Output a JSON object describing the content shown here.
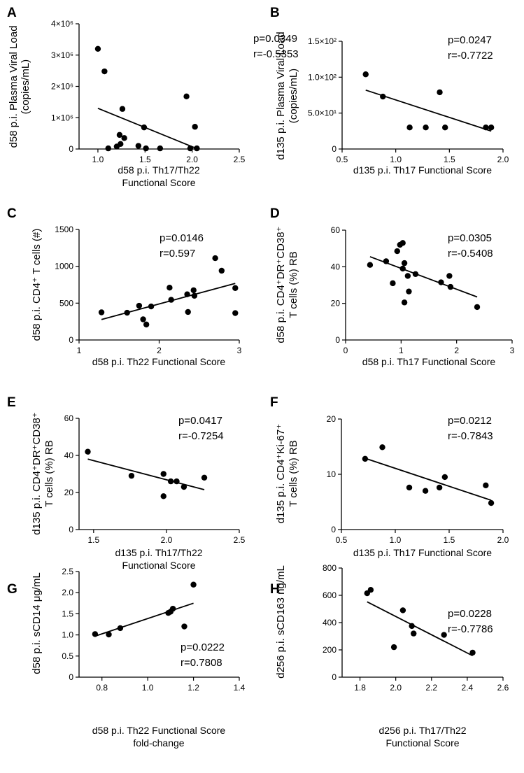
{
  "chart_data": [
    {
      "panel": "A",
      "type": "scatter",
      "xlabel": [
        "d58 p.i. Th17/Th22",
        "Functional Score"
      ],
      "ylabel": [
        "d58 p.i. Plasma Viral Load",
        "(copies/mL)"
      ],
      "xlim": [
        0.8,
        2.5
      ],
      "ylim": [
        0,
        4000000
      ],
      "xticks": [
        1.0,
        1.5,
        2.0,
        2.5
      ],
      "xtick_labels": [
        "1.0",
        "1.5",
        "2.0",
        "2.5"
      ],
      "yticks": [
        0,
        1000000,
        2000000,
        3000000,
        4000000
      ],
      "ytick_labels": [
        "0",
        "1×10⁶",
        "2×10⁶",
        "3×10⁶",
        "4×10⁶"
      ],
      "points": [
        [
          1.0,
          3200000
        ],
        [
          1.07,
          2480000
        ],
        [
          1.11,
          20000
        ],
        [
          1.2,
          80000
        ],
        [
          1.23,
          450000
        ],
        [
          1.24,
          160000
        ],
        [
          1.26,
          1280000
        ],
        [
          1.28,
          350000
        ],
        [
          1.43,
          100000
        ],
        [
          1.49,
          690000
        ],
        [
          1.51,
          20000
        ],
        [
          1.66,
          20000
        ],
        [
          1.94,
          1680000
        ],
        [
          1.98,
          20000
        ],
        [
          2.03,
          710000
        ],
        [
          2.05,
          20000
        ]
      ],
      "fit": [
        [
          1.0,
          1300000
        ],
        [
          2.06,
          0
        ]
      ],
      "stats": [
        "p=0.0349",
        "r=-0.5353"
      ]
    },
    {
      "panel": "B",
      "type": "scatter",
      "xlabel": [
        "d135 p.i. Th17 Functional Score"
      ],
      "ylabel": [
        "d135 p.i. Plasma Viral Load",
        "(copies/mL)"
      ],
      "xlim": [
        0.5,
        2.0
      ],
      "ylim": [
        0,
        150
      ],
      "xticks": [
        0.5,
        1.0,
        1.5,
        2.0
      ],
      "xtick_labels": [
        "0.5",
        "1.0",
        "1.5",
        "2.0"
      ],
      "yticks": [
        0,
        50,
        100,
        150
      ],
      "ytick_labels": [
        "0",
        "5.0×10¹",
        "1.0×10²",
        "1.5×10²"
      ],
      "points": [
        [
          0.72,
          104
        ],
        [
          0.88,
          73
        ],
        [
          1.13,
          30
        ],
        [
          1.28,
          30
        ],
        [
          1.41,
          79
        ],
        [
          1.46,
          30
        ],
        [
          1.84,
          30
        ],
        [
          1.89,
          30
        ]
      ],
      "fit": [
        [
          0.72,
          82
        ],
        [
          1.89,
          25
        ]
      ],
      "stats": [
        "p=0.0247",
        "r=-0.7722"
      ]
    },
    {
      "panel": "C",
      "type": "scatter",
      "xlabel": [
        "d58 p.i. Th22 Functional Score"
      ],
      "ylabel": [
        "d58 p.i. CD4⁺ T cells (#)"
      ],
      "xlim": [
        1,
        3
      ],
      "ylim": [
        0,
        1500
      ],
      "xticks": [
        1,
        2,
        3
      ],
      "xtick_labels": [
        "1",
        "2",
        "3"
      ],
      "yticks": [
        0,
        500,
        1000,
        1500
      ],
      "ytick_labels": [
        "0",
        "500",
        "1000",
        "1500"
      ],
      "points": [
        [
          1.28,
          375
        ],
        [
          1.6,
          370
        ],
        [
          1.75,
          465
        ],
        [
          1.8,
          280
        ],
        [
          1.84,
          210
        ],
        [
          1.9,
          455
        ],
        [
          2.13,
          710
        ],
        [
          2.15,
          545
        ],
        [
          2.35,
          620
        ],
        [
          2.36,
          380
        ],
        [
          2.43,
          675
        ],
        [
          2.44,
          600
        ],
        [
          2.7,
          1110
        ],
        [
          2.78,
          940
        ],
        [
          2.95,
          705
        ],
        [
          2.95,
          365
        ]
      ],
      "fit": [
        [
          1.28,
          278
        ],
        [
          2.95,
          768
        ]
      ],
      "stats": [
        "p=0.0146",
        "r=0.597"
      ]
    },
    {
      "panel": "D",
      "type": "scatter",
      "xlabel": [
        "d58 p.i. Th17 Functional Score"
      ],
      "ylabel": [
        "d58 p.i. CD4⁺DR⁺CD38⁺",
        "T cells (%) RB"
      ],
      "xlim": [
        0,
        3
      ],
      "ylim": [
        0,
        60
      ],
      "xticks": [
        0,
        1,
        2,
        3
      ],
      "xtick_labels": [
        "0",
        "1",
        "2",
        "3"
      ],
      "yticks": [
        0,
        20,
        40,
        60
      ],
      "ytick_labels": [
        "0",
        "20",
        "40",
        "60"
      ],
      "points": [
        [
          0.44,
          41
        ],
        [
          0.73,
          43
        ],
        [
          0.85,
          31
        ],
        [
          0.93,
          48.5
        ],
        [
          0.98,
          52
        ],
        [
          1.03,
          53
        ],
        [
          1.03,
          39
        ],
        [
          1.06,
          42
        ],
        [
          1.06,
          20.5
        ],
        [
          1.12,
          35
        ],
        [
          1.14,
          26.5
        ],
        [
          1.26,
          36
        ],
        [
          1.72,
          31.5
        ],
        [
          1.87,
          35
        ],
        [
          1.89,
          29
        ],
        [
          2.37,
          18
        ]
      ],
      "fit": [
        [
          0.44,
          45.5
        ],
        [
          2.37,
          23.5
        ]
      ],
      "stats": [
        "p=0.0305",
        "r=-0.5408"
      ]
    },
    {
      "panel": "E",
      "type": "scatter",
      "xlabel": [
        "d135 p.i. Th17/Th22",
        "Functional Score"
      ],
      "ylabel": [
        "d135 p.i. CD4⁺DR⁺CD38⁺",
        "T cells (%) RB"
      ],
      "xlim": [
        1.4,
        2.5
      ],
      "ylim": [
        0,
        60
      ],
      "xticks": [
        1.5,
        2.0,
        2.5
      ],
      "xtick_labels": [
        "1.5",
        "2.0",
        "2.5"
      ],
      "yticks": [
        0,
        20,
        40,
        60
      ],
      "ytick_labels": [
        "0",
        "20",
        "40",
        "60"
      ],
      "points": [
        [
          1.46,
          42
        ],
        [
          1.76,
          29
        ],
        [
          1.98,
          30
        ],
        [
          1.98,
          18
        ],
        [
          2.03,
          26
        ],
        [
          2.07,
          26
        ],
        [
          2.12,
          23
        ],
        [
          2.26,
          28
        ]
      ],
      "fit": [
        [
          1.46,
          38
        ],
        [
          2.26,
          21.5
        ]
      ],
      "stats": [
        "p=0.0417",
        "r=-0.7254"
      ]
    },
    {
      "panel": "F",
      "type": "scatter",
      "xlabel": [
        "d135 p.i. Th17 Functional Score"
      ],
      "ylabel": [
        "d135 p.i. CD4⁺Ki-67⁺",
        "T cells (%) RB"
      ],
      "xlim": [
        0.5,
        2.0
      ],
      "ylim": [
        0,
        20
      ],
      "xticks": [
        0.5,
        1.0,
        1.5,
        2.0
      ],
      "xtick_labels": [
        "0.5",
        "1.0",
        "1.5",
        "2.0"
      ],
      "yticks": [
        0,
        10,
        20
      ],
      "ytick_labels": [
        "0",
        "10",
        "20"
      ],
      "points": [
        [
          0.72,
          12.8
        ],
        [
          0.88,
          14.9
        ],
        [
          1.13,
          7.6
        ],
        [
          1.28,
          7
        ],
        [
          1.41,
          7.6
        ],
        [
          1.46,
          9.5
        ],
        [
          1.84,
          8
        ],
        [
          1.89,
          4.8
        ]
      ],
      "fit": [
        [
          0.72,
          12.9
        ],
        [
          1.89,
          5.3
        ]
      ],
      "stats": [
        "p=0.0212",
        "r=-0.7843"
      ]
    },
    {
      "panel": "G",
      "type": "scatter",
      "xlabel": [
        "d58 p.i. Th22 Functional Score",
        "fold-change"
      ],
      "ylabel": [
        "d58 p.i. sCD14 μg/mL"
      ],
      "xlim": [
        0.7,
        1.4
      ],
      "ylim": [
        0,
        2.5
      ],
      "xticks": [
        0.8,
        1.0,
        1.2,
        1.4
      ],
      "xtick_labels": [
        "0.8",
        "1.0",
        "1.2",
        "1.4"
      ],
      "yticks": [
        0,
        0.5,
        1.0,
        1.5,
        2.0,
        2.5
      ],
      "ytick_labels": [
        "0",
        "0.5",
        "1.0",
        "1.5",
        "2.0",
        "2.5"
      ],
      "points": [
        [
          0.77,
          1.02
        ],
        [
          0.83,
          1.01
        ],
        [
          0.88,
          1.16
        ],
        [
          1.09,
          1.52
        ],
        [
          1.1,
          1.55
        ],
        [
          1.11,
          1.62
        ],
        [
          1.16,
          1.2
        ],
        [
          1.2,
          2.19
        ]
      ],
      "fit": [
        [
          0.77,
          0.97
        ],
        [
          1.2,
          1.75
        ]
      ],
      "stats": [
        "p=0.0222",
        "r=0.7808"
      ]
    },
    {
      "panel": "H",
      "type": "scatter",
      "xlabel": [
        "d256 p.i. Th17/Th22",
        "Functional Score"
      ],
      "ylabel": [
        "d256 p.i. sCD163 ng/mL"
      ],
      "xlim": [
        1.7,
        2.6
      ],
      "ylim": [
        0,
        800
      ],
      "xticks": [
        1.8,
        2.0,
        2.2,
        2.4,
        2.6
      ],
      "xtick_labels": [
        "1.8",
        "2.0",
        "2.2",
        "2.4",
        "2.6"
      ],
      "yticks": [
        0,
        200,
        400,
        600,
        800
      ],
      "ytick_labels": [
        "0",
        "200",
        "400",
        "600",
        "800"
      ],
      "points": [
        [
          1.84,
          615
        ],
        [
          1.86,
          640
        ],
        [
          1.99,
          220
        ],
        [
          2.04,
          490
        ],
        [
          2.09,
          375
        ],
        [
          2.1,
          320
        ],
        [
          2.27,
          310
        ],
        [
          2.43,
          180
        ]
      ],
      "fit": [
        [
          1.84,
          552
        ],
        [
          2.43,
          157
        ]
      ],
      "stats": [
        "p=0.0228",
        "r=-0.7786"
      ]
    }
  ]
}
